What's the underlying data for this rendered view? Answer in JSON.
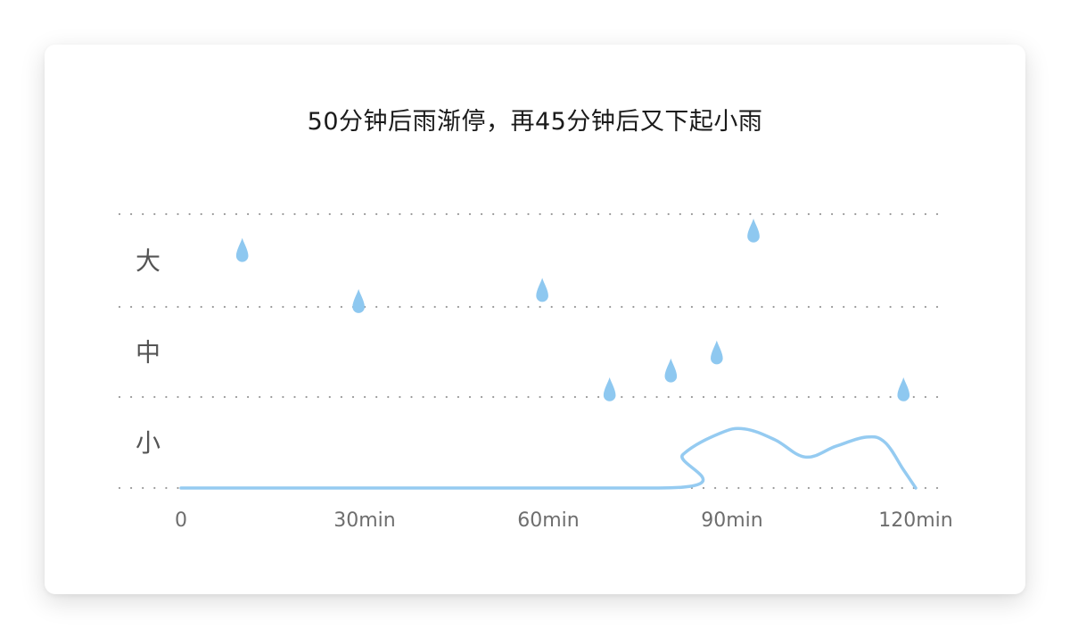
{
  "title": "50分钟后雨渐停，再45分钟后又下起小雨",
  "chart_data": {
    "type": "line",
    "title": "50分钟后雨渐停，再45分钟后又下起小雨",
    "xlabel": "",
    "ylabel": "",
    "x_ticks": [
      {
        "value": 0,
        "label": "0"
      },
      {
        "value": 30,
        "label": "30min"
      },
      {
        "value": 60,
        "label": "60min"
      },
      {
        "value": 90,
        "label": "90min"
      },
      {
        "value": 120,
        "label": "120min"
      }
    ],
    "y_levels": [
      {
        "label": "小",
        "from": 0,
        "to": 1
      },
      {
        "label": "中",
        "from": 1,
        "to": 2
      },
      {
        "label": "大",
        "from": 2,
        "to": 3
      }
    ],
    "xlim": [
      0,
      120
    ],
    "ylim": [
      0,
      3
    ],
    "grid": true,
    "line_color": "#95cbf1",
    "drop_color": "#8ec8f0",
    "grid_color": "#9a9a9a",
    "series": [
      {
        "x": [
          0,
          78,
          82,
          88,
          92,
          97,
          102,
          107,
          112,
          115,
          118,
          120
        ],
        "y": [
          0,
          0,
          0.37,
          0.6,
          0.65,
          0.53,
          0.34,
          0.46,
          0.56,
          0.5,
          0.2,
          0
        ]
      }
    ],
    "drops": [
      {
        "x": 10,
        "y": 2.55
      },
      {
        "x": 29,
        "y": 2.0
      },
      {
        "x": 59,
        "y": 2.12
      },
      {
        "x": 70,
        "y": 1.02
      },
      {
        "x": 80,
        "y": 1.23
      },
      {
        "x": 87.5,
        "y": 1.43
      },
      {
        "x": 93.5,
        "y": 2.76
      },
      {
        "x": 118,
        "y": 1.02
      }
    ]
  }
}
